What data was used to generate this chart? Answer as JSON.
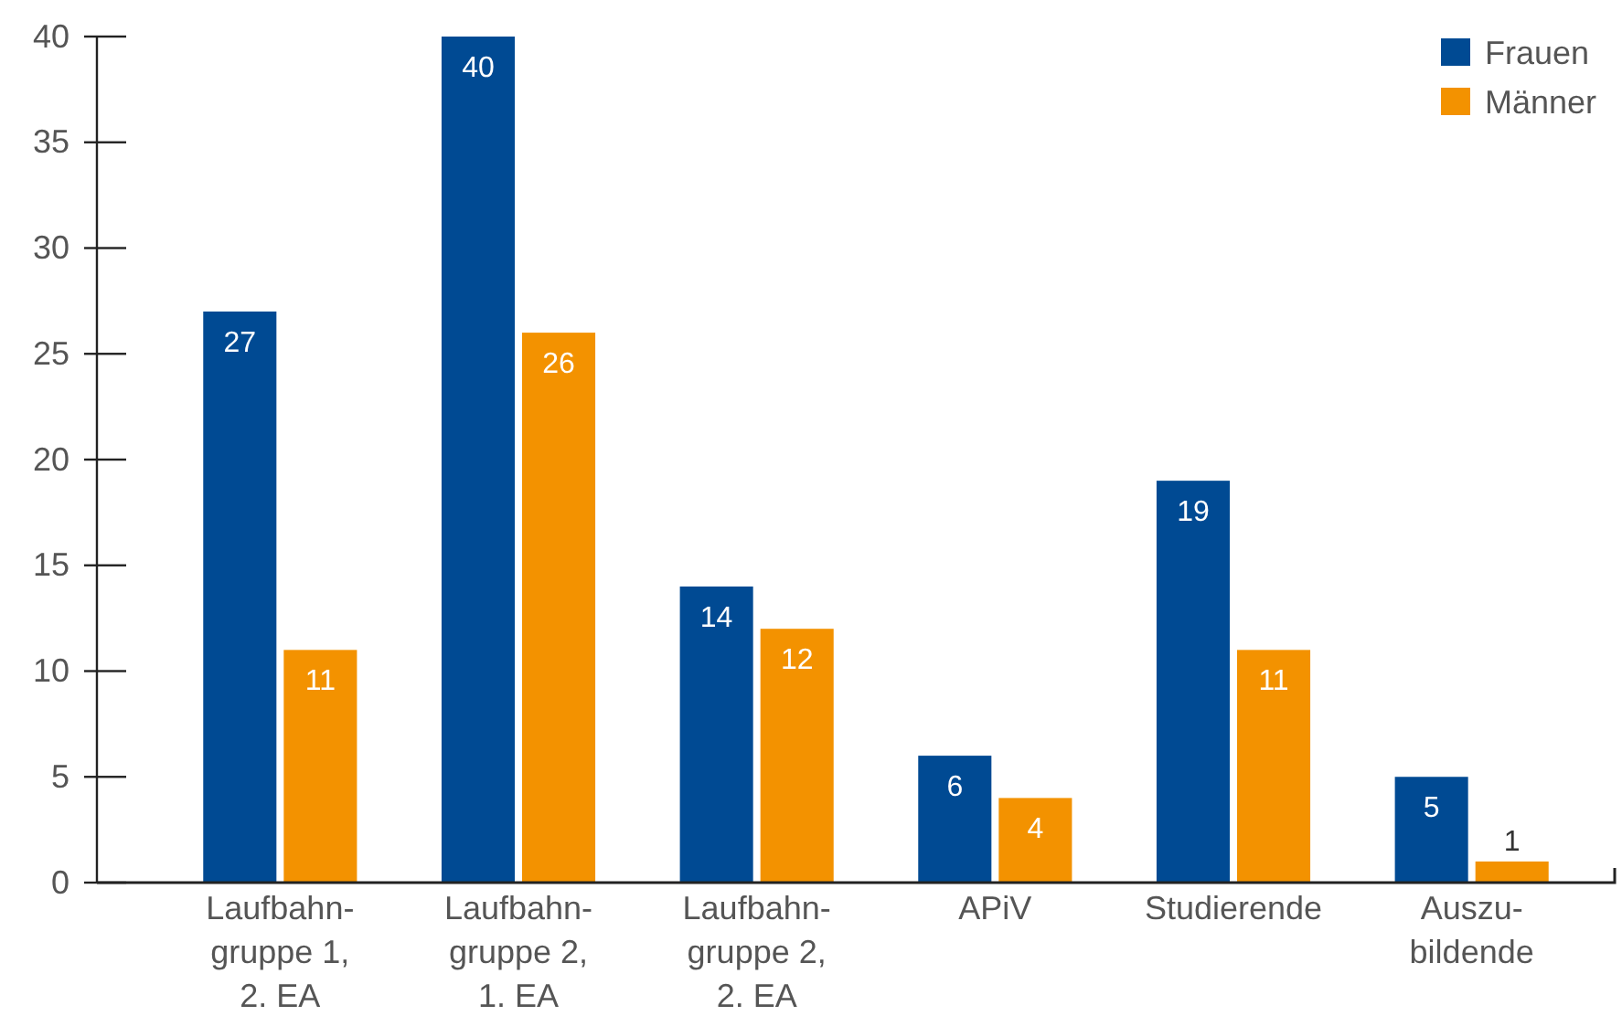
{
  "chart_data": {
    "type": "bar",
    "categories": [
      "Laufbahn-\ngruppe 1,\n2. EA",
      "Laufbahn-\ngruppe 2,\n1. EA",
      "Laufbahn-\ngruppe 2,\n2. EA",
      "APiV",
      "Studierende",
      "Auszu-\nbildende"
    ],
    "series": [
      {
        "name": "Frauen",
        "color": "#004a93",
        "values": [
          27,
          40,
          14,
          6,
          19,
          5
        ]
      },
      {
        "name": "Männer",
        "color": "#f39200",
        "values": [
          11,
          26,
          12,
          4,
          11,
          1
        ]
      }
    ],
    "ylim": [
      0,
      40
    ],
    "yticks": [
      0,
      5,
      10,
      15,
      20,
      25,
      30,
      35,
      40
    ],
    "data_labels": true,
    "legend": "top right"
  }
}
